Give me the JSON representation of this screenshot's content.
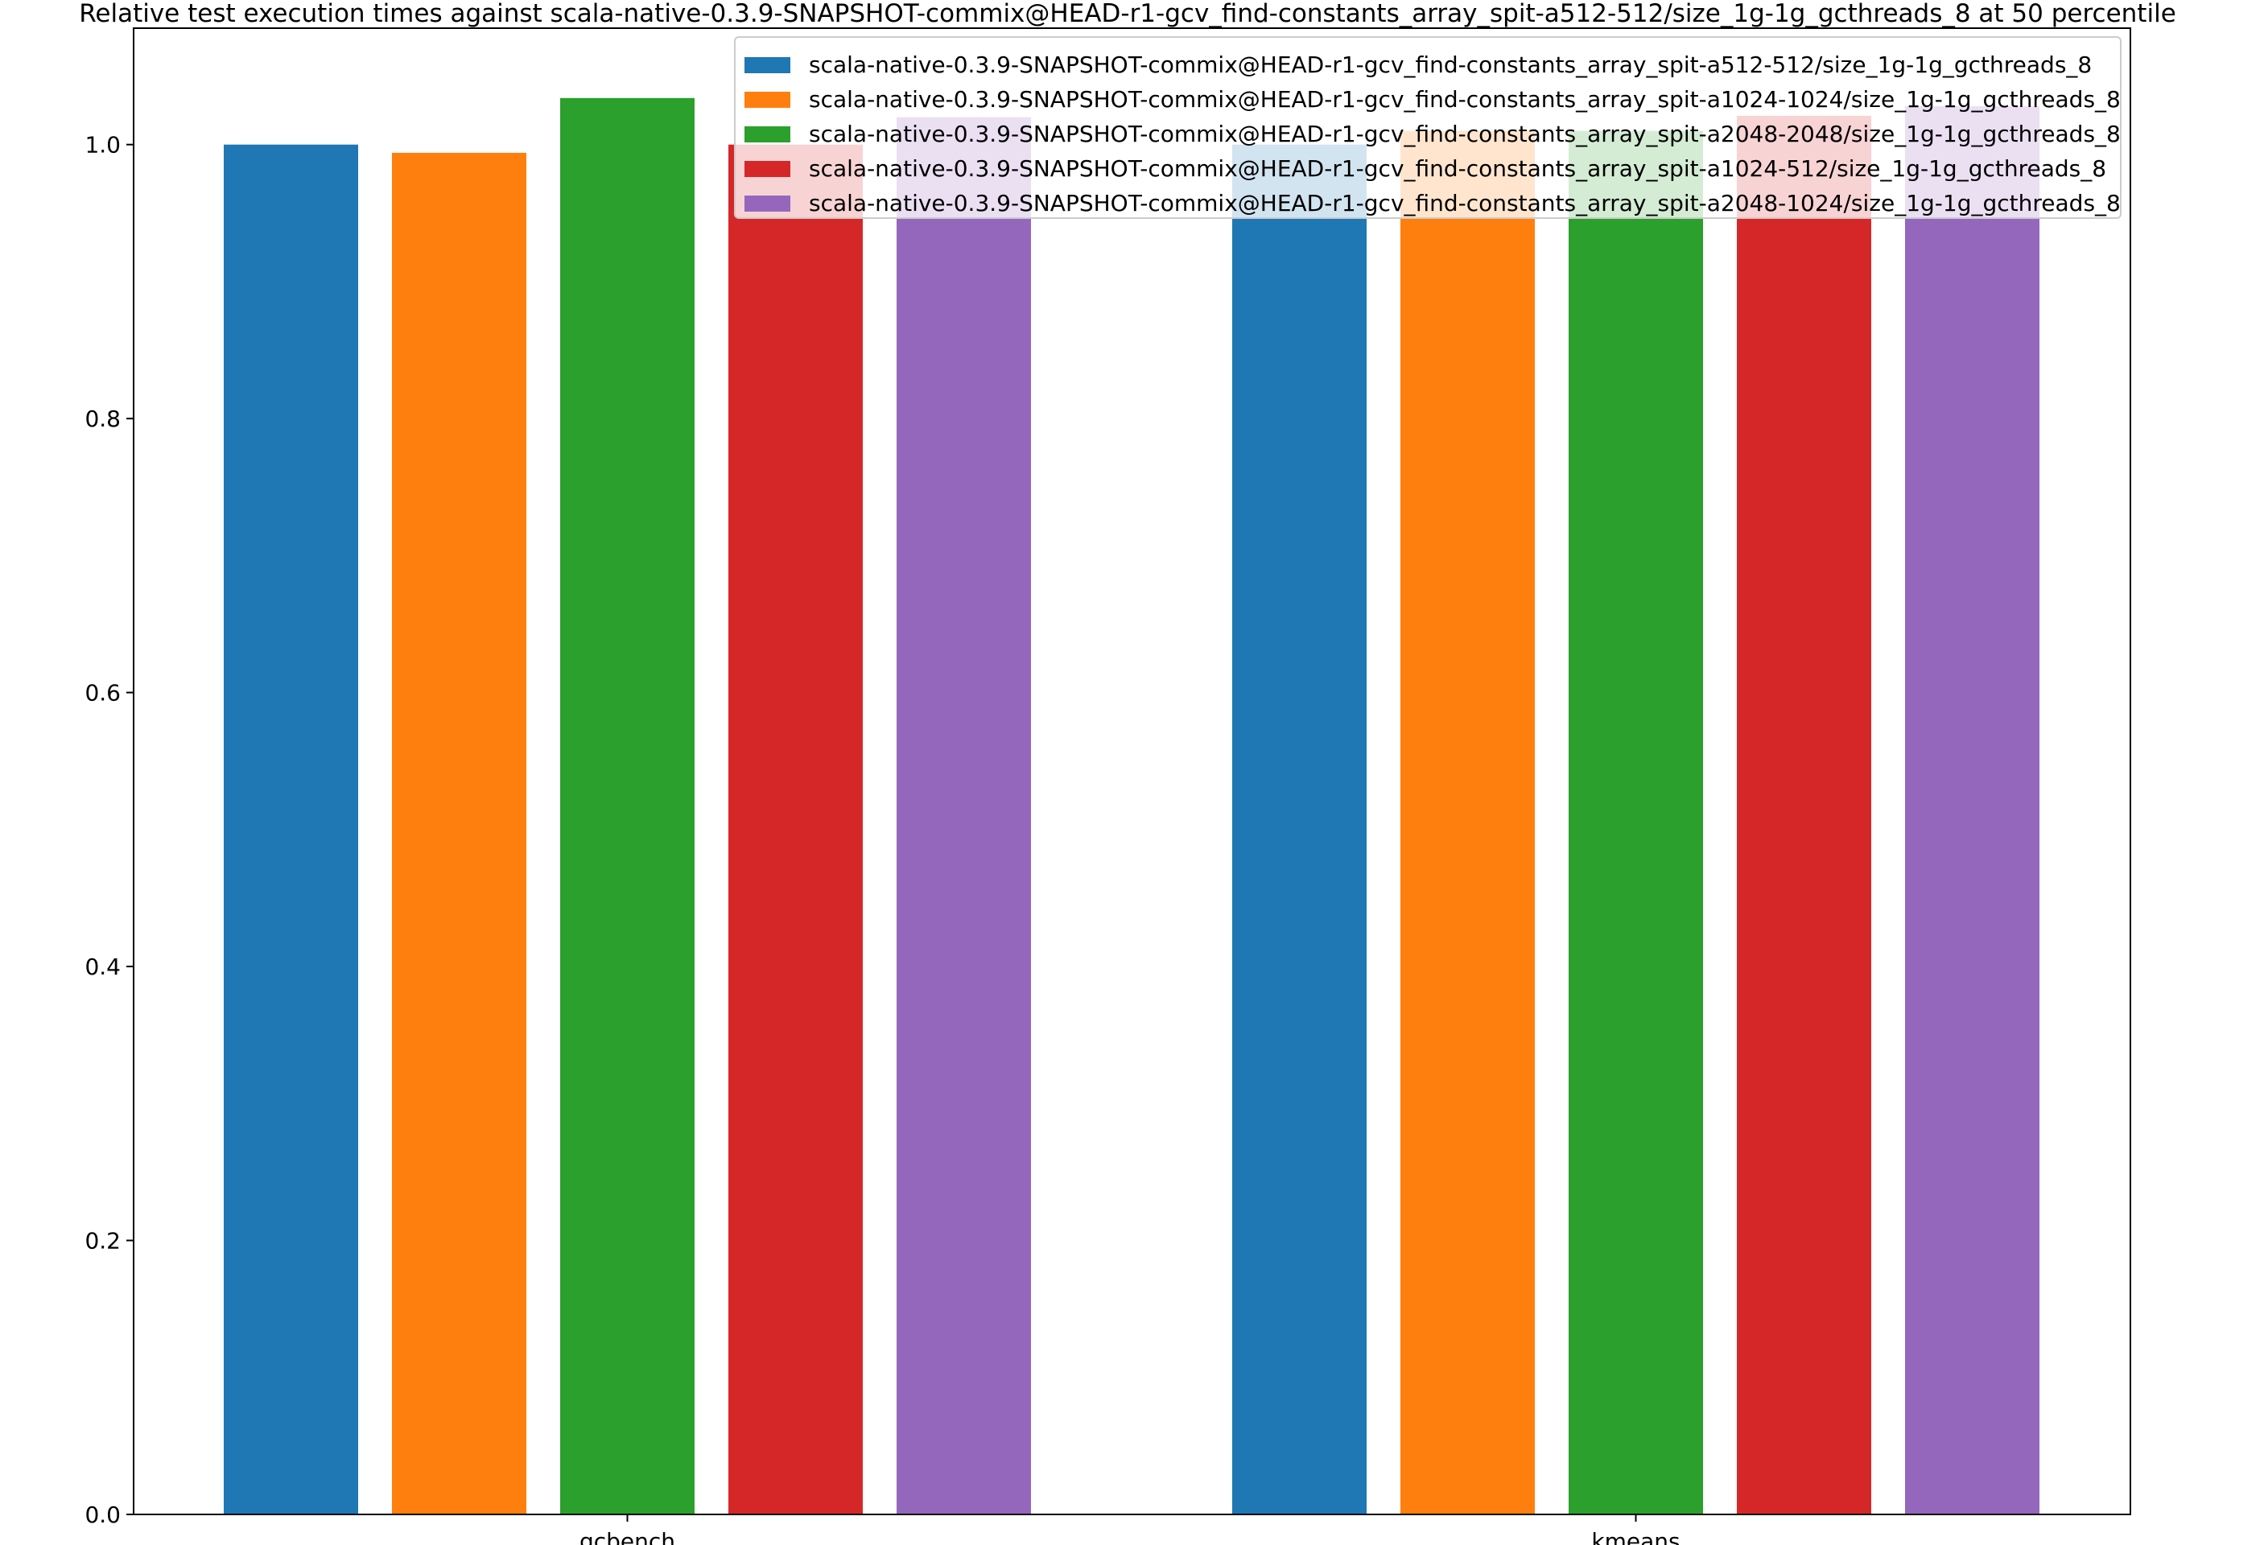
{
  "chart_data": {
    "type": "bar",
    "title": "Relative test execution times against scala-native-0.3.9-SNAPSHOT-commix@HEAD-r1-gcv_find-constants_array_spit-a512-512/size_1g-1g_gcthreads_8 at 50 percentile",
    "xlabel": "",
    "ylabel": "",
    "categories": [
      "gcbench",
      "kmeans"
    ],
    "ylim": [
      0,
      1.085
    ],
    "yticks": [
      "0.0",
      "0.2",
      "0.4",
      "0.6",
      "0.8",
      "1.0"
    ],
    "grid": false,
    "legend_position": "top-right",
    "series": [
      {
        "name": "scala-native-0.3.9-SNAPSHOT-commix@HEAD-r1-gcv_find-constants_array_spit-a512-512/size_1g-1g_gcthreads_8",
        "color": "#1f77b4",
        "values": [
          1.0,
          1.0
        ]
      },
      {
        "name": "scala-native-0.3.9-SNAPSHOT-commix@HEAD-r1-gcv_find-constants_array_spit-a1024-1024/size_1g-1g_gcthreads_8",
        "color": "#ff7f0e",
        "values": [
          0.994,
          1.01
        ]
      },
      {
        "name": "scala-native-0.3.9-SNAPSHOT-commix@HEAD-r1-gcv_find-constants_array_spit-a2048-2048/size_1g-1g_gcthreads_8",
        "color": "#2ca02c",
        "values": [
          1.034,
          1.01
        ]
      },
      {
        "name": "scala-native-0.3.9-SNAPSHOT-commix@HEAD-r1-gcv_find-constants_array_spit-a1024-512/size_1g-1g_gcthreads_8",
        "color": "#d62728",
        "values": [
          1.0,
          1.021
        ]
      },
      {
        "name": "scala-native-0.3.9-SNAPSHOT-commix@HEAD-r1-gcv_find-constants_array_spit-a2048-1024/size_1g-1g_gcthreads_8",
        "color": "#9467bd",
        "values": [
          1.02,
          1.028
        ]
      }
    ]
  }
}
